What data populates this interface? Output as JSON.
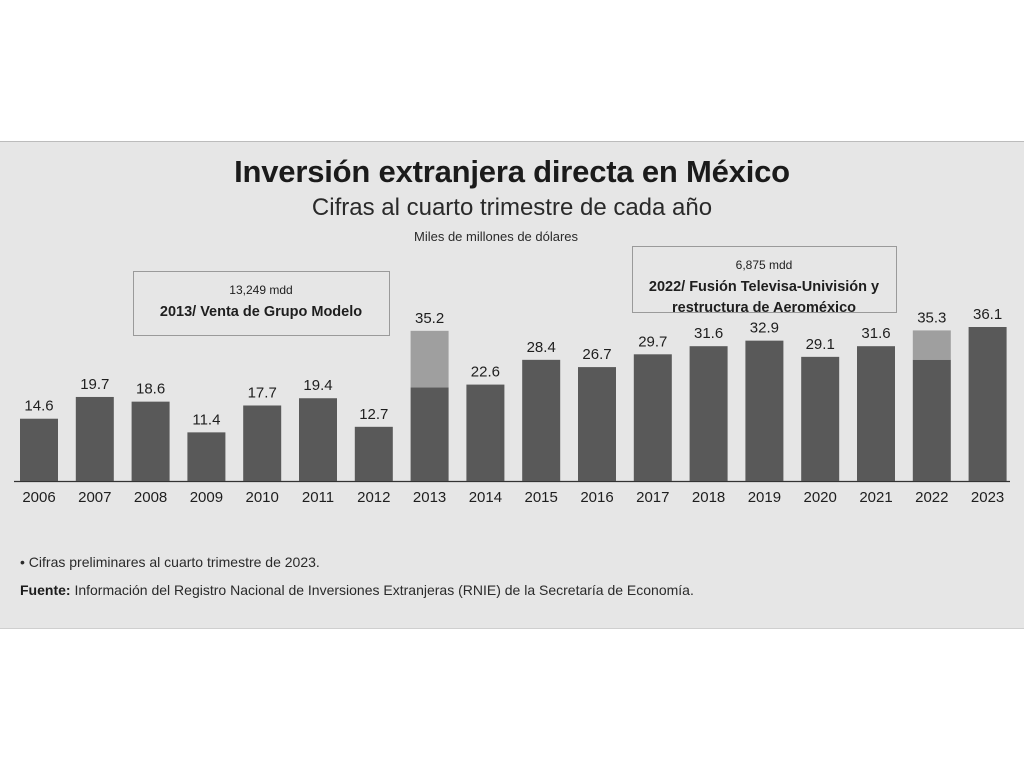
{
  "header": {
    "title": "Inversión extranjera directa en México",
    "subtitle": "Cifras al cuarto trimestre de cada año",
    "units": "Miles de millones de dólares"
  },
  "annotations": [
    {
      "year": "2013",
      "amount": "13,249 mdd",
      "lines": [
        "2013/ Venta de Grupo Modelo"
      ]
    },
    {
      "year": "2022",
      "amount": "6,875 mdd",
      "lines": [
        "2022/ Fusión Televisa-Univisión y",
        "restructura de Aeroméxico"
      ]
    }
  ],
  "footer": {
    "footnote": "• Cifras preliminares al cuarto trimestre de 2023.",
    "source_label": "Fuente:",
    "source_text": "Información del Registro Nacional de Inversiones Extranjeras (RNIE) de la Secretaría de Economía."
  },
  "colors": {
    "bar": "#595959",
    "highlight": "#9f9f9f",
    "axis": "#333333",
    "text": "#1e1e1e",
    "box_border": "#9a9a9a"
  },
  "chart_data": {
    "type": "bar",
    "stacked": true,
    "categories": [
      "2006",
      "2007",
      "2008",
      "2009",
      "2010",
      "2011",
      "2012",
      "2013",
      "2014",
      "2015",
      "2016",
      "2017",
      "2018",
      "2019",
      "2020",
      "2021",
      "2022",
      "2023"
    ],
    "values": [
      14.6,
      19.7,
      18.6,
      11.4,
      17.7,
      19.4,
      12.7,
      35.2,
      22.6,
      28.4,
      26.7,
      29.7,
      31.6,
      32.9,
      29.1,
      31.6,
      35.3,
      36.1
    ],
    "value_labels": [
      "14.6",
      "19.7",
      "18.6",
      "11.4",
      "17.7",
      "19.4",
      "12.7",
      "35.2",
      "22.6",
      "28.4",
      "26.7",
      "29.7",
      "31.6",
      "32.9",
      "29.1",
      "31.6",
      "35.3",
      "36.1"
    ],
    "highlight_portion": [
      0,
      0,
      0,
      0,
      0,
      0,
      0,
      13.249,
      0,
      0,
      0,
      0,
      0,
      0,
      0,
      0,
      6.875,
      0
    ],
    "ylim": [
      0,
      36.1
    ],
    "grid": false,
    "legend": "none"
  }
}
